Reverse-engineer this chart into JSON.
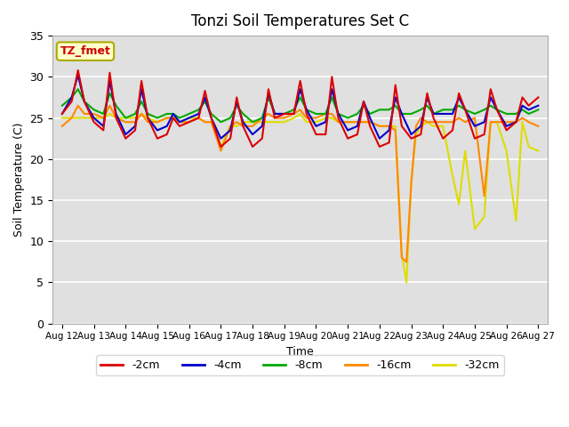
{
  "title": "Tonzi Soil Temperatures Set C",
  "xlabel": "Time",
  "ylabel": "Soil Temperature (C)",
  "ylim": [
    0,
    35
  ],
  "background_color": "#ffffff",
  "plot_bg_color": "#e0e0e0",
  "grid_color": "#ffffff",
  "annotation_text": "TZ_fmet",
  "annotation_color": "#cc0000",
  "annotation_bg": "#ffffcc",
  "annotation_edge": "#aaaa00",
  "x_tick_labels": [
    "Aug 12",
    "Aug 13",
    "Aug 14",
    "Aug 15",
    "Aug 16",
    "Aug 17",
    "Aug 18",
    "Aug 19",
    "Aug 20",
    "Aug 21",
    "Aug 22",
    "Aug 23",
    "Aug 24",
    "Aug 25",
    "Aug 26",
    "Aug 27"
  ],
  "series": {
    "neg2cm": {
      "label": "-2cm",
      "color": "#dd0000",
      "lw": 1.5
    },
    "neg4cm": {
      "label": "-4cm",
      "color": "#0000cc",
      "lw": 1.5
    },
    "neg8cm": {
      "label": "-8cm",
      "color": "#00aa00",
      "lw": 1.5
    },
    "neg16cm": {
      "label": "-16cm",
      "color": "#ff8800",
      "lw": 1.5
    },
    "neg32cm": {
      "label": "-32cm",
      "color": "#dddd00",
      "lw": 1.5
    }
  },
  "x_neg2cm": [
    0,
    0.3,
    0.5,
    0.7,
    1,
    1.3,
    1.5,
    1.7,
    2,
    2.3,
    2.5,
    2.7,
    3,
    3.3,
    3.5,
    3.7,
    4,
    4.3,
    4.5,
    4.7,
    5,
    5.3,
    5.5,
    5.7,
    6,
    6.3,
    6.5,
    6.7,
    7,
    7.3,
    7.5,
    7.7,
    8,
    8.3,
    8.5,
    8.7,
    9,
    9.3,
    9.5,
    9.7,
    10,
    10.3,
    10.5,
    10.7,
    11,
    11.3,
    11.5,
    11.7,
    12,
    12.3,
    12.5,
    12.7,
    13,
    13.3,
    13.5,
    13.7,
    14,
    14.3,
    14.5,
    14.7,
    15
  ],
  "y_neg2cm": [
    25.5,
    27.0,
    30.8,
    27.0,
    24.5,
    23.5,
    30.5,
    25.0,
    22.5,
    23.5,
    29.5,
    25.0,
    22.5,
    23.0,
    25.0,
    24.0,
    24.5,
    25.0,
    28.3,
    25.0,
    21.5,
    22.5,
    27.5,
    24.0,
    21.5,
    22.5,
    28.5,
    25.0,
    25.5,
    25.5,
    29.5,
    25.5,
    23.0,
    23.0,
    30.0,
    25.0,
    22.5,
    23.0,
    27.0,
    24.0,
    21.5,
    22.0,
    29.0,
    24.0,
    22.5,
    23.0,
    28.0,
    25.0,
    22.5,
    23.5,
    28.0,
    26.0,
    22.5,
    23.0,
    28.5,
    26.0,
    23.5,
    24.5,
    27.5,
    26.5,
    27.5
  ],
  "x_neg4cm": [
    0,
    0.3,
    0.5,
    0.7,
    1,
    1.3,
    1.5,
    1.7,
    2,
    2.3,
    2.5,
    2.7,
    3,
    3.3,
    3.5,
    3.7,
    4,
    4.3,
    4.5,
    4.7,
    5,
    5.3,
    5.5,
    5.7,
    6,
    6.3,
    6.5,
    6.7,
    7,
    7.3,
    7.5,
    7.7,
    8,
    8.3,
    8.5,
    8.7,
    9,
    9.3,
    9.5,
    9.7,
    10,
    10.3,
    10.5,
    10.7,
    11,
    11.3,
    11.5,
    11.7,
    12,
    12.3,
    12.5,
    12.7,
    13,
    13.3,
    13.5,
    13.7,
    14,
    14.3,
    14.5,
    14.7,
    15
  ],
  "y_neg4cm": [
    25.5,
    27.5,
    30.2,
    27.0,
    25.0,
    24.0,
    29.5,
    25.5,
    23.0,
    24.0,
    28.5,
    25.0,
    23.5,
    24.0,
    25.5,
    24.5,
    25.0,
    25.5,
    27.5,
    25.0,
    22.5,
    23.5,
    27.0,
    24.5,
    23.0,
    24.0,
    28.0,
    25.5,
    25.5,
    25.5,
    28.5,
    26.0,
    24.0,
    24.5,
    28.5,
    25.5,
    23.5,
    24.0,
    27.0,
    25.0,
    22.5,
    23.5,
    27.5,
    25.5,
    23.0,
    24.0,
    27.5,
    25.5,
    25.5,
    25.5,
    27.5,
    26.0,
    24.0,
    24.5,
    27.5,
    26.0,
    24.0,
    24.5,
    26.5,
    26.0,
    26.5
  ],
  "x_neg8cm": [
    0,
    0.3,
    0.5,
    0.7,
    1,
    1.3,
    1.5,
    1.7,
    2,
    2.3,
    2.5,
    2.7,
    3,
    3.3,
    3.5,
    3.7,
    4,
    4.3,
    4.5,
    4.7,
    5,
    5.3,
    5.5,
    5.7,
    6,
    6.3,
    6.5,
    6.7,
    7,
    7.3,
    7.5,
    7.7,
    8,
    8.3,
    8.5,
    8.7,
    9,
    9.3,
    9.5,
    9.7,
    10,
    10.3,
    10.5,
    10.7,
    11,
    11.3,
    11.5,
    11.7,
    12,
    12.3,
    12.5,
    12.7,
    13,
    13.3,
    13.5,
    13.7,
    14,
    14.3,
    14.5,
    14.7,
    15
  ],
  "y_neg8cm": [
    26.5,
    27.5,
    28.5,
    27.0,
    26.0,
    25.5,
    28.0,
    26.5,
    25.0,
    25.5,
    27.0,
    25.5,
    25.0,
    25.5,
    25.5,
    25.0,
    25.5,
    26.0,
    27.0,
    25.5,
    24.5,
    25.0,
    26.5,
    25.5,
    24.5,
    25.0,
    27.5,
    25.5,
    25.5,
    26.0,
    27.5,
    26.0,
    25.5,
    25.5,
    27.5,
    25.5,
    25.0,
    25.5,
    26.5,
    25.5,
    26.0,
    26.0,
    26.5,
    25.5,
    25.5,
    26.0,
    26.5,
    25.5,
    26.0,
    26.0,
    26.5,
    26.0,
    25.5,
    26.0,
    26.5,
    26.0,
    25.5,
    25.5,
    26.0,
    25.5,
    26.0
  ],
  "x_neg16cm": [
    0,
    0.3,
    0.5,
    0.7,
    1,
    1.3,
    1.5,
    1.7,
    2,
    2.3,
    2.5,
    2.7,
    3,
    3.3,
    3.5,
    3.7,
    4,
    4.3,
    4.5,
    4.7,
    5,
    5.3,
    5.5,
    5.7,
    6,
    6.3,
    6.5,
    6.7,
    7,
    7.3,
    7.5,
    7.7,
    8,
    8.3,
    8.5,
    8.7,
    9,
    9.3,
    9.5,
    9.7,
    10,
    10.3,
    10.5,
    10.7,
    10.85,
    11,
    11.15,
    11.3,
    11.5,
    11.7,
    12,
    12.3,
    12.5,
    12.7,
    13,
    13.3,
    13.5,
    13.7,
    14,
    14.3,
    14.5,
    14.7,
    15
  ],
  "y_neg16cm": [
    24.0,
    25.0,
    26.5,
    25.5,
    25.5,
    25.0,
    26.5,
    25.0,
    24.5,
    24.5,
    25.5,
    24.5,
    24.5,
    25.0,
    25.0,
    24.5,
    24.5,
    25.0,
    24.5,
    24.5,
    21.0,
    24.0,
    24.5,
    24.0,
    24.0,
    25.0,
    25.5,
    25.0,
    25.0,
    25.5,
    26.0,
    25.0,
    25.0,
    25.5,
    25.5,
    24.5,
    24.5,
    24.5,
    24.5,
    24.5,
    24.0,
    24.0,
    23.5,
    8.0,
    7.5,
    17.0,
    24.0,
    25.0,
    24.5,
    24.5,
    24.5,
    24.5,
    25.0,
    24.5,
    25.0,
    15.5,
    24.5,
    24.5,
    24.5,
    24.5,
    25.0,
    24.5,
    24.0
  ],
  "x_neg32cm": [
    0,
    0.3,
    0.5,
    0.7,
    1,
    1.3,
    1.5,
    1.7,
    2,
    2.3,
    2.5,
    2.7,
    3,
    3.3,
    3.5,
    3.7,
    4,
    4.3,
    4.5,
    4.7,
    5,
    5.3,
    5.5,
    5.7,
    6,
    6.3,
    6.5,
    6.7,
    7,
    7.3,
    7.5,
    7.7,
    8,
    8.3,
    8.5,
    8.7,
    9,
    9.3,
    9.5,
    9.7,
    10,
    10.3,
    10.5,
    10.7,
    10.85,
    11,
    11.15,
    11.3,
    11.5,
    11.7,
    12,
    12.3,
    12.5,
    12.7,
    13,
    13.3,
    13.5,
    13.7,
    14,
    14.3,
    14.5,
    14.7,
    15
  ],
  "y_neg32cm": [
    25.0,
    25.0,
    25.0,
    25.0,
    25.0,
    25.0,
    25.5,
    25.0,
    25.0,
    25.0,
    25.5,
    25.0,
    24.5,
    25.0,
    25.0,
    24.5,
    25.0,
    25.0,
    24.5,
    24.5,
    21.5,
    24.0,
    24.0,
    24.5,
    24.5,
    24.5,
    24.5,
    24.5,
    24.5,
    25.0,
    25.5,
    24.5,
    24.5,
    25.0,
    25.0,
    24.5,
    24.5,
    24.5,
    24.5,
    24.5,
    24.0,
    24.0,
    24.0,
    8.5,
    5.0,
    17.5,
    23.0,
    24.0,
    24.5,
    24.0,
    24.0,
    18.0,
    14.5,
    21.0,
    11.5,
    13.0,
    24.5,
    24.5,
    21.0,
    12.5,
    24.5,
    21.5,
    21.0
  ]
}
